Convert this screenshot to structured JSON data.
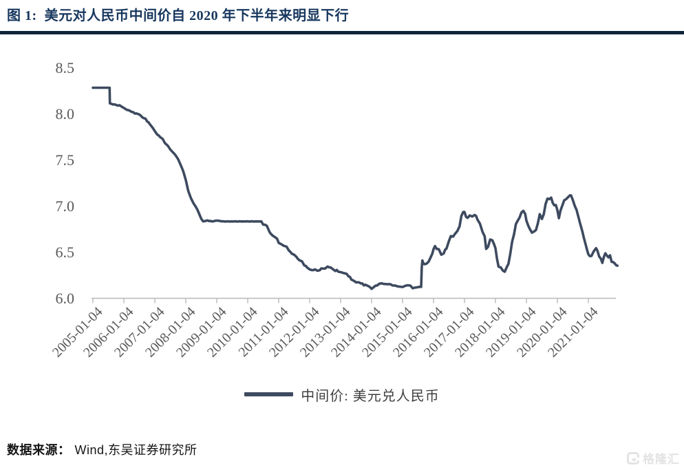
{
  "page": {
    "title": "图 1:  美元对人民币中间价自 2020 年下半年来明显下行",
    "source_label": "数据来源：",
    "source_value": "Wind,东吴证券研究所",
    "watermark": "格隆汇",
    "colors": {
      "title_navy": "#17375e",
      "title_rule": "#0f2438",
      "line": "#3d4a5f",
      "axis_text": "#595959",
      "axis_line": "#b8b8b8",
      "legend_text": "#3f3f3f",
      "watermark_gray": "#e3e3e3"
    }
  },
  "chart_data": {
    "type": "line",
    "title": "图 1:  美元对人民币中间价自 2020 年下半年来明显下行",
    "legend": {
      "label": "中间价: 美元兑人民币",
      "position": "bottom"
    },
    "grid": false,
    "x_axis": {
      "tick_labels": [
        "2005-01-04",
        "2006-01-04",
        "2007-01-04",
        "2008-01-04",
        "2009-01-04",
        "2010-01-04",
        "2011-01-04",
        "2012-01-04",
        "2013-01-04",
        "2014-01-04",
        "2015-01-04",
        "2016-01-04",
        "2017-01-04",
        "2018-01-04",
        "2019-01-04",
        "2020-01-04",
        "2021-01-04"
      ],
      "start_year": 2005,
      "tick_interval_years": 1,
      "rotation_deg": -45
    },
    "y_axis": {
      "tick_labels": [
        "6.0",
        "6.5",
        "7.0",
        "7.5",
        "8.0",
        "8.5"
      ],
      "min": 6.0,
      "max": 8.5
    },
    "series": [
      {
        "name": "中间价: 美元兑人民币",
        "color": "#3d4a5f",
        "points": [
          [
            2005.0,
            8.28
          ],
          [
            2005.2,
            8.28
          ],
          [
            2005.4,
            8.28
          ],
          [
            2005.54,
            8.28
          ],
          [
            2005.55,
            8.11
          ],
          [
            2005.65,
            8.1
          ],
          [
            2005.8,
            8.09
          ],
          [
            2005.92,
            8.08
          ],
          [
            2006.0,
            8.06
          ],
          [
            2006.1,
            8.04
          ],
          [
            2006.2,
            8.03
          ],
          [
            2006.3,
            8.01
          ],
          [
            2006.4,
            8.0
          ],
          [
            2006.5,
            7.99
          ],
          [
            2006.6,
            7.96
          ],
          [
            2006.7,
            7.94
          ],
          [
            2006.8,
            7.9
          ],
          [
            2006.9,
            7.86
          ],
          [
            2007.0,
            7.81
          ],
          [
            2007.08,
            7.77
          ],
          [
            2007.17,
            7.75
          ],
          [
            2007.25,
            7.72
          ],
          [
            2007.33,
            7.68
          ],
          [
            2007.42,
            7.65
          ],
          [
            2007.5,
            7.61
          ],
          [
            2007.58,
            7.58
          ],
          [
            2007.67,
            7.55
          ],
          [
            2007.75,
            7.5
          ],
          [
            2007.83,
            7.45
          ],
          [
            2007.92,
            7.37
          ],
          [
            2008.0,
            7.28
          ],
          [
            2008.08,
            7.16
          ],
          [
            2008.17,
            7.08
          ],
          [
            2008.25,
            7.02
          ],
          [
            2008.33,
            6.99
          ],
          [
            2008.42,
            6.92
          ],
          [
            2008.5,
            6.86
          ],
          [
            2008.56,
            6.83
          ],
          [
            2008.7,
            6.84
          ],
          [
            2008.85,
            6.83
          ],
          [
            2009.0,
            6.84
          ],
          [
            2009.2,
            6.83
          ],
          [
            2009.4,
            6.83
          ],
          [
            2009.6,
            6.83
          ],
          [
            2009.8,
            6.83
          ],
          [
            2010.0,
            6.83
          ],
          [
            2010.2,
            6.83
          ],
          [
            2010.44,
            6.83
          ],
          [
            2010.5,
            6.8
          ],
          [
            2010.56,
            6.79
          ],
          [
            2010.62,
            6.78
          ],
          [
            2010.68,
            6.74
          ],
          [
            2010.72,
            6.7
          ],
          [
            2010.8,
            6.68
          ],
          [
            2010.88,
            6.66
          ],
          [
            2010.95,
            6.64
          ],
          [
            2011.0,
            6.6
          ],
          [
            2011.08,
            6.58
          ],
          [
            2011.17,
            6.57
          ],
          [
            2011.25,
            6.55
          ],
          [
            2011.33,
            6.52
          ],
          [
            2011.42,
            6.48
          ],
          [
            2011.5,
            6.47
          ],
          [
            2011.58,
            6.44
          ],
          [
            2011.67,
            6.41
          ],
          [
            2011.75,
            6.39
          ],
          [
            2011.83,
            6.36
          ],
          [
            2011.92,
            6.33
          ],
          [
            2012.0,
            6.31
          ],
          [
            2012.08,
            6.3
          ],
          [
            2012.17,
            6.31
          ],
          [
            2012.25,
            6.29
          ],
          [
            2012.33,
            6.31
          ],
          [
            2012.42,
            6.32
          ],
          [
            2012.5,
            6.32
          ],
          [
            2012.58,
            6.34
          ],
          [
            2012.67,
            6.33
          ],
          [
            2012.75,
            6.31
          ],
          [
            2012.83,
            6.3
          ],
          [
            2012.92,
            6.29
          ],
          [
            2013.0,
            6.28
          ],
          [
            2013.1,
            6.27
          ],
          [
            2013.2,
            6.26
          ],
          [
            2013.3,
            6.22
          ],
          [
            2013.4,
            6.19
          ],
          [
            2013.5,
            6.17
          ],
          [
            2013.6,
            6.17
          ],
          [
            2013.7,
            6.15
          ],
          [
            2013.8,
            6.14
          ],
          [
            2013.9,
            6.13
          ],
          [
            2014.0,
            6.1
          ],
          [
            2014.08,
            6.12
          ],
          [
            2014.17,
            6.14
          ],
          [
            2014.25,
            6.15
          ],
          [
            2014.33,
            6.16
          ],
          [
            2014.42,
            6.15
          ],
          [
            2014.5,
            6.15
          ],
          [
            2014.58,
            6.15
          ],
          [
            2014.67,
            6.14
          ],
          [
            2014.75,
            6.13
          ],
          [
            2014.83,
            6.13
          ],
          [
            2014.92,
            6.12
          ],
          [
            2015.0,
            6.12
          ],
          [
            2015.08,
            6.13
          ],
          [
            2015.17,
            6.14
          ],
          [
            2015.25,
            6.13
          ],
          [
            2015.33,
            6.11
          ],
          [
            2015.42,
            6.11
          ],
          [
            2015.5,
            6.12
          ],
          [
            2015.6,
            6.12
          ],
          [
            2015.62,
            6.33
          ],
          [
            2015.64,
            6.4
          ],
          [
            2015.68,
            6.38
          ],
          [
            2015.72,
            6.36
          ],
          [
            2015.78,
            6.37
          ],
          [
            2015.84,
            6.4
          ],
          [
            2015.9,
            6.43
          ],
          [
            2015.96,
            6.48
          ],
          [
            2016.0,
            6.53
          ],
          [
            2016.05,
            6.56
          ],
          [
            2016.1,
            6.54
          ],
          [
            2016.17,
            6.52
          ],
          [
            2016.25,
            6.47
          ],
          [
            2016.33,
            6.49
          ],
          [
            2016.42,
            6.54
          ],
          [
            2016.5,
            6.62
          ],
          [
            2016.56,
            6.67
          ],
          [
            2016.63,
            6.67
          ],
          [
            2016.7,
            6.69
          ],
          [
            2016.77,
            6.73
          ],
          [
            2016.84,
            6.78
          ],
          [
            2016.9,
            6.88
          ],
          [
            2016.96,
            6.94
          ],
          [
            2017.0,
            6.93
          ],
          [
            2017.05,
            6.88
          ],
          [
            2017.1,
            6.87
          ],
          [
            2017.17,
            6.89
          ],
          [
            2017.25,
            6.89
          ],
          [
            2017.33,
            6.9
          ],
          [
            2017.42,
            6.86
          ],
          [
            2017.5,
            6.8
          ],
          [
            2017.58,
            6.72
          ],
          [
            2017.65,
            6.67
          ],
          [
            2017.7,
            6.53
          ],
          [
            2017.76,
            6.56
          ],
          [
            2017.83,
            6.63
          ],
          [
            2017.9,
            6.62
          ],
          [
            2017.96,
            6.59
          ],
          [
            2018.0,
            6.53
          ],
          [
            2018.05,
            6.43
          ],
          [
            2018.1,
            6.34
          ],
          [
            2018.17,
            6.33
          ],
          [
            2018.24,
            6.3
          ],
          [
            2018.3,
            6.28
          ],
          [
            2018.36,
            6.33
          ],
          [
            2018.42,
            6.38
          ],
          [
            2018.48,
            6.47
          ],
          [
            2018.54,
            6.62
          ],
          [
            2018.6,
            6.69
          ],
          [
            2018.66,
            6.8
          ],
          [
            2018.72,
            6.84
          ],
          [
            2018.78,
            6.87
          ],
          [
            2018.84,
            6.93
          ],
          [
            2018.9,
            6.95
          ],
          [
            2018.96,
            6.9
          ],
          [
            2019.0,
            6.85
          ],
          [
            2019.06,
            6.78
          ],
          [
            2019.12,
            6.74
          ],
          [
            2019.18,
            6.71
          ],
          [
            2019.25,
            6.72
          ],
          [
            2019.31,
            6.74
          ],
          [
            2019.37,
            6.81
          ],
          [
            2019.43,
            6.9
          ],
          [
            2019.5,
            6.87
          ],
          [
            2019.56,
            6.9
          ],
          [
            2019.62,
            7.02
          ],
          [
            2019.68,
            7.08
          ],
          [
            2019.74,
            7.07
          ],
          [
            2019.8,
            7.09
          ],
          [
            2019.85,
            7.03
          ],
          [
            2019.9,
            7.0
          ],
          [
            2019.95,
            7.02
          ],
          [
            2020.0,
            6.94
          ],
          [
            2020.05,
            6.87
          ],
          [
            2020.1,
            6.95
          ],
          [
            2020.16,
            7.0
          ],
          [
            2020.22,
            7.06
          ],
          [
            2020.28,
            7.07
          ],
          [
            2020.34,
            7.09
          ],
          [
            2020.4,
            7.12
          ],
          [
            2020.44,
            7.1
          ],
          [
            2020.5,
            7.07
          ],
          [
            2020.56,
            7.0
          ],
          [
            2020.62,
            6.95
          ],
          [
            2020.68,
            6.88
          ],
          [
            2020.74,
            6.8
          ],
          [
            2020.8,
            6.73
          ],
          [
            2020.86,
            6.65
          ],
          [
            2020.92,
            6.56
          ],
          [
            2020.96,
            6.53
          ],
          [
            2021.0,
            6.47
          ],
          [
            2021.05,
            6.45
          ],
          [
            2021.1,
            6.46
          ],
          [
            2021.15,
            6.49
          ],
          [
            2021.2,
            6.52
          ],
          [
            2021.25,
            6.54
          ],
          [
            2021.3,
            6.5
          ],
          [
            2021.35,
            6.46
          ],
          [
            2021.4,
            6.42
          ],
          [
            2021.45,
            6.38
          ],
          [
            2021.5,
            6.45
          ],
          [
            2021.55,
            6.48
          ],
          [
            2021.6,
            6.46
          ],
          [
            2021.65,
            6.44
          ],
          [
            2021.7,
            6.46
          ],
          [
            2021.75,
            6.4
          ],
          [
            2021.8,
            6.38
          ],
          [
            2021.85,
            6.38
          ],
          [
            2021.9,
            6.36
          ],
          [
            2021.94,
            6.35
          ]
        ]
      }
    ],
    "render": {
      "jitter_segments": [
        [
          2005.0,
          2005.54,
          0
        ],
        [
          2005.55,
          2008.56,
          0.006
        ],
        [
          2008.56,
          2010.44,
          0.0025
        ],
        [
          2010.44,
          2014.0,
          0.009
        ],
        [
          2014.0,
          2015.6,
          0.006
        ],
        [
          2015.62,
          2021.94,
          0.013
        ]
      ]
    }
  }
}
